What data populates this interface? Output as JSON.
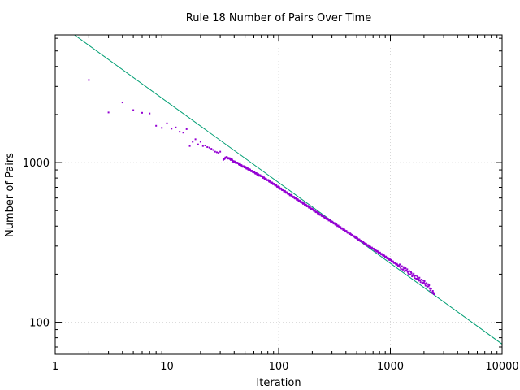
{
  "chart_data": {
    "type": "scatter",
    "title": "Rule 18 Number of Pairs Over Time",
    "xlabel": "Iteration",
    "ylabel": "Number of Pairs",
    "x_scale": "log",
    "y_scale": "log",
    "xlim": [
      1,
      10000
    ],
    "ylim": [
      63,
      6300
    ],
    "x_ticks": [
      1,
      10,
      100,
      1000,
      10000
    ],
    "x_tick_labels": [
      "1",
      "10",
      "100",
      "1000",
      "10000"
    ],
    "y_ticks": [
      100,
      1000
    ],
    "y_tick_labels": [
      "100",
      "1000"
    ],
    "grid": true,
    "legend": "none",
    "colors": {
      "points": "#9400d3",
      "fit_line": "#009e73"
    },
    "series": [
      {
        "type": "scatter",
        "x_range": [
          2,
          2450
        ],
        "points": [
          [
            2,
            3290
          ],
          [
            3,
            2060
          ],
          [
            4,
            2380
          ],
          [
            5,
            2130
          ],
          [
            6,
            2050
          ],
          [
            7,
            2030
          ],
          [
            8,
            1700
          ],
          [
            9,
            1650
          ],
          [
            10,
            1760
          ],
          [
            11,
            1630
          ],
          [
            12,
            1660
          ],
          [
            13,
            1560
          ],
          [
            14,
            1540
          ],
          [
            15,
            1620
          ],
          [
            16,
            1270
          ],
          [
            17,
            1350
          ],
          [
            18,
            1400
          ],
          [
            19,
            1300
          ],
          [
            20,
            1350
          ],
          [
            21,
            1270
          ],
          [
            22,
            1280
          ],
          [
            23,
            1250
          ],
          [
            24,
            1240
          ],
          [
            25,
            1220
          ],
          [
            26,
            1200
          ],
          [
            27,
            1170
          ],
          [
            28,
            1160
          ],
          [
            29,
            1150
          ],
          [
            30,
            1170
          ],
          [
            32,
            1040
          ],
          [
            33,
            1060
          ],
          [
            34,
            1080
          ],
          [
            36,
            1060
          ],
          [
            38,
            1040
          ],
          [
            40,
            1010
          ],
          [
            43,
            990
          ],
          [
            46,
            960
          ],
          [
            50,
            935
          ],
          [
            55,
            900
          ],
          [
            60,
            870
          ],
          [
            70,
            820
          ],
          [
            80,
            775
          ],
          [
            90,
            735
          ],
          [
            100,
            700
          ],
          [
            130,
            620
          ],
          [
            160,
            565
          ],
          [
            200,
            510
          ],
          [
            250,
            460
          ],
          [
            300,
            425
          ],
          [
            400,
            372
          ],
          [
            500,
            336
          ],
          [
            600,
            309
          ],
          [
            700,
            288
          ],
          [
            800,
            272
          ],
          [
            1000,
            245
          ],
          [
            1200,
            225
          ],
          [
            1400,
            210
          ],
          [
            1600,
            197
          ],
          [
            1800,
            186
          ],
          [
            2000,
            177
          ],
          [
            2200,
            168
          ],
          [
            2450,
            150
          ]
        ]
      },
      {
        "type": "line",
        "x": [
          1,
          10000
        ],
        "y": [
          7700,
          73
        ]
      }
    ]
  }
}
